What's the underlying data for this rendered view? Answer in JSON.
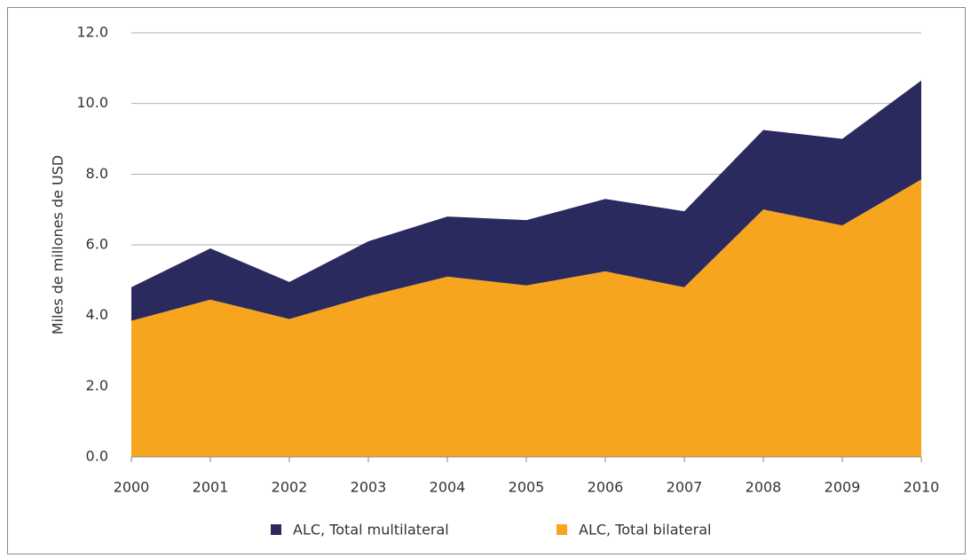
{
  "chart_data": {
    "type": "area",
    "y_label": "Miles de millones de USD",
    "categories": [
      "2000",
      "2001",
      "2002",
      "2003",
      "2004",
      "2005",
      "2006",
      "2007",
      "2008",
      "2009",
      "2010"
    ],
    "series": [
      {
        "name": "ALC, Total multilateral",
        "color": "#2b2a5e",
        "values": [
          0.95,
          1.45,
          1.05,
          1.55,
          1.7,
          1.85,
          2.05,
          2.15,
          2.25,
          2.45,
          2.8
        ]
      },
      {
        "name": "ALC, Total bilateral",
        "color": "#f7a51e",
        "values": [
          3.85,
          4.45,
          3.9,
          4.55,
          5.1,
          4.85,
          5.25,
          4.8,
          7.0,
          6.55,
          7.85
        ]
      }
    ],
    "stacked": true,
    "ylim": [
      0,
      12
    ],
    "yticks": [
      {
        "value": 0,
        "label": "0.0"
      },
      {
        "value": 2,
        "label": "2.0"
      },
      {
        "value": 4,
        "label": "4.0"
      },
      {
        "value": 6,
        "label": "6.0"
      },
      {
        "value": 8,
        "label": "8.0"
      },
      {
        "value": 10,
        "label": "10.0"
      },
      {
        "value": 12,
        "label": "12.0"
      }
    ],
    "grid": true,
    "legend": "bottom"
  }
}
